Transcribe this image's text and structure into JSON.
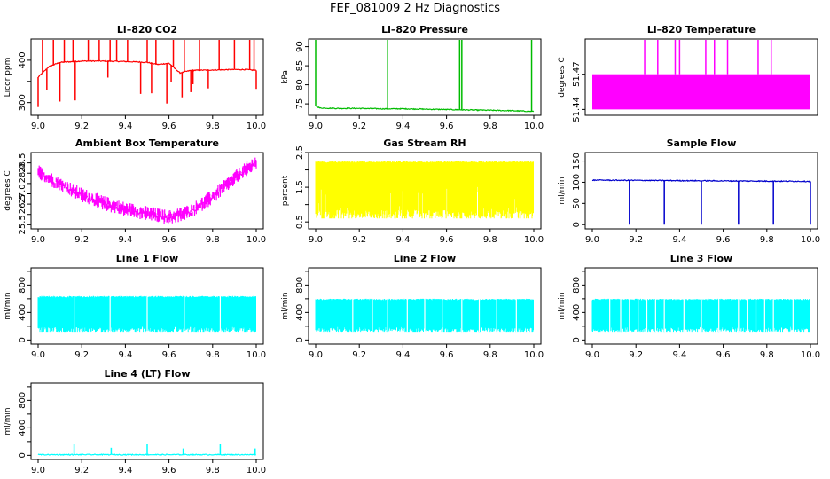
{
  "title": "FEF_081009  2 Hz Diagnostics",
  "chart_data": [
    {
      "type": "line",
      "title": "Li–820 CO2",
      "ylabel": "Licor ppm",
      "color": "#ff0000",
      "xlim": [
        9.0,
        10.0
      ],
      "ylim": [
        270,
        450
      ],
      "yticks": [
        300,
        350,
        400
      ],
      "yticklabels": [
        "300",
        "",
        "400"
      ],
      "xticks": [
        9.0,
        9.2,
        9.4,
        9.6,
        9.8,
        10.0
      ],
      "xticklabels": [
        "9.0",
        "9.2",
        "9.4",
        "9.6",
        "9.8",
        "10.0"
      ],
      "series": [
        {
          "x": [
            9.0,
            9.05,
            9.1,
            9.2,
            9.3,
            9.4,
            9.5,
            9.55,
            9.6,
            9.65,
            9.7,
            9.8,
            9.9,
            9.95,
            10.0
          ],
          "y": [
            360,
            385,
            395,
            398,
            398,
            397,
            395,
            390,
            393,
            370,
            376,
            377,
            378,
            378,
            376
          ]
        }
      ],
      "spikes_up": [
        9.02,
        9.07,
        9.12,
        9.16,
        9.23,
        9.28,
        9.33,
        9.36,
        9.41,
        9.5,
        9.54,
        9.62,
        9.67,
        9.74,
        9.83,
        9.9,
        9.97,
        9.99
      ],
      "spikes_down": [
        9.0,
        9.04,
        9.1,
        9.17,
        9.32,
        9.47,
        9.52,
        9.59,
        9.61,
        9.66,
        9.7,
        9.71,
        9.78,
        10.0
      ]
    },
    {
      "type": "line",
      "title": "Li–820 Pressure",
      "ylabel": "kPa",
      "color": "#00bb00",
      "xlim": [
        9.0,
        10.0
      ],
      "ylim": [
        72,
        92
      ],
      "yticks": [
        75,
        80,
        85,
        90
      ],
      "yticklabels": [
        "75",
        "80",
        "85",
        "90"
      ],
      "xticks": [
        9.0,
        9.2,
        9.4,
        9.6,
        9.8,
        10.0
      ],
      "xticklabels": [
        "9.0",
        "9.2",
        "9.4",
        "9.6",
        "9.8",
        "10.0"
      ],
      "series": [
        {
          "x": [
            9.0,
            9.02,
            9.1,
            9.2,
            9.3,
            9.4,
            9.5,
            9.6,
            9.7,
            9.8,
            9.9,
            10.0
          ],
          "y": [
            74.5,
            73.9,
            73.8,
            73.8,
            73.7,
            73.7,
            73.6,
            73.5,
            73.4,
            73.3,
            73.2,
            73.0
          ]
        }
      ],
      "spikes_up": [
        9.0,
        9.33,
        9.66,
        9.67,
        9.99
      ]
    },
    {
      "type": "line",
      "title": "Li–820 Temperature",
      "ylabel": "degrees C",
      "color": "#ff00ff",
      "xlim": [
        9.0,
        10.0
      ],
      "ylim": [
        51.435,
        51.5
      ],
      "yticks": [
        51.44,
        51.47
      ],
      "yticklabels": [
        "51.44",
        "51.47"
      ],
      "band": [
        51.44,
        51.47
      ],
      "spikes_up": [
        9.24,
        9.3,
        9.38,
        9.4,
        9.52,
        9.56,
        9.62,
        9.76,
        9.82
      ]
    },
    {
      "type": "area",
      "title": "Ambient Box Temperature",
      "ylabel": "degrees C",
      "color": "#ff00ff",
      "xlim": [
        9.0,
        10.0
      ],
      "ylim": [
        25.3,
        29.0
      ],
      "yticks": [
        25.5,
        26.0,
        26.5,
        27.0,
        27.5,
        28.0,
        28.5
      ],
      "yticklabels": [
        "25.5",
        "",
        "26.5",
        "27.0",
        "",
        "28.0",
        "28.5"
      ],
      "xticks": [
        9.0,
        9.2,
        9.4,
        9.6,
        9.8,
        10.0
      ],
      "xticklabels": [
        "9.0",
        "9.2",
        "9.4",
        "9.6",
        "9.8",
        "10.0"
      ],
      "series": [
        {
          "x": [
            9.0,
            9.1,
            9.2,
            9.3,
            9.4,
            9.5,
            9.6,
            9.7,
            9.8,
            9.9,
            10.0
          ],
          "y": [
            28.1,
            27.5,
            27.0,
            26.6,
            26.3,
            26.1,
            25.9,
            26.2,
            26.9,
            27.8,
            28.6
          ]
        }
      ],
      "noise": 0.45
    },
    {
      "type": "area",
      "title": "Gas Stream RH",
      "ylabel": "percent",
      "color": "#ffff00",
      "xlim": [
        9.0,
        10.0
      ],
      "ylim": [
        0.3,
        2.5
      ],
      "yticks": [
        0.5,
        1.0,
        1.5,
        2.0,
        2.5
      ],
      "yticklabels": [
        "0.5",
        "",
        "1.5",
        "",
        "2.5"
      ],
      "xticks": [
        9.0,
        9.2,
        9.4,
        9.6,
        9.8,
        10.0
      ],
      "xticklabels": [
        "9.0",
        "9.2",
        "9.4",
        "9.6",
        "9.8",
        "10.0"
      ],
      "band": [
        0.6,
        2.25
      ]
    },
    {
      "type": "line",
      "title": "Sample Flow",
      "ylabel": "ml/min",
      "color": "#0000cc",
      "xlim": [
        9.0,
        10.0
      ],
      "ylim": [
        -10,
        170
      ],
      "yticks": [
        0,
        50,
        100,
        150
      ],
      "yticklabels": [
        "0",
        "50",
        "100",
        "150"
      ],
      "xticks": [
        9.0,
        9.2,
        9.4,
        9.6,
        9.8,
        10.0
      ],
      "xticklabels": [
        "9.0",
        "9.2",
        "9.4",
        "9.6",
        "9.8",
        "10.0"
      ],
      "series": [
        {
          "x": [
            9.0,
            10.0
          ],
          "y": [
            105,
            102
          ]
        }
      ],
      "spikes_down": [
        9.17,
        9.33,
        9.5,
        9.67,
        9.83,
        10.0
      ]
    },
    {
      "type": "area",
      "title": "Line 1 Flow",
      "ylabel": "ml/min",
      "color": "#00ffff",
      "xlim": [
        9.0,
        10.0
      ],
      "ylim": [
        -60,
        1050
      ],
      "yticks": [
        0,
        200,
        400,
        600,
        800,
        1000
      ],
      "yticklabels": [
        "0",
        "",
        "400",
        "",
        "800",
        ""
      ],
      "xticks": [
        9.0,
        9.2,
        9.4,
        9.6,
        9.8,
        10.0
      ],
      "xticklabels": [
        "9.0",
        "9.2",
        "9.4",
        "9.6",
        "9.8",
        "10.0"
      ],
      "band": [
        120,
        640
      ],
      "gaps": [
        9.165,
        9.33,
        9.5,
        9.67,
        9.835
      ]
    },
    {
      "type": "area",
      "title": "Line 2 Flow",
      "ylabel": "ml/min",
      "color": "#00ffff",
      "xlim": [
        9.0,
        10.0
      ],
      "ylim": [
        -60,
        1050
      ],
      "yticks": [
        0,
        200,
        400,
        600,
        800,
        1000
      ],
      "yticklabels": [
        "0",
        "",
        "400",
        "",
        "800",
        ""
      ],
      "xticks": [
        9.0,
        9.2,
        9.4,
        9.6,
        9.8,
        10.0
      ],
      "xticklabels": [
        "9.0",
        "9.2",
        "9.4",
        "9.6",
        "9.8",
        "10.0"
      ],
      "band": [
        120,
        600
      ],
      "gaps": [
        9.17,
        9.26,
        9.33,
        9.42,
        9.5,
        9.58,
        9.67,
        9.75,
        9.83,
        9.92
      ]
    },
    {
      "type": "area",
      "title": "Line 3 Flow",
      "ylabel": "ml/min",
      "color": "#00ffff",
      "xlim": [
        9.0,
        10.0
      ],
      "ylim": [
        -60,
        1050
      ],
      "yticks": [
        0,
        200,
        400,
        600,
        800,
        1000
      ],
      "yticklabels": [
        "0",
        "",
        "400",
        "",
        "800",
        ""
      ],
      "xticks": [
        9.0,
        9.2,
        9.4,
        9.6,
        9.8,
        10.0
      ],
      "xticklabels": [
        "9.0",
        "9.2",
        "9.4",
        "9.6",
        "9.8",
        "10.0"
      ],
      "band": [
        120,
        600
      ],
      "gaps": [
        9.08,
        9.13,
        9.17,
        9.21,
        9.25,
        9.29,
        9.33,
        9.42,
        9.5,
        9.58,
        9.67,
        9.71,
        9.75,
        9.79,
        9.83,
        9.92
      ]
    },
    {
      "type": "line",
      "title": "Line 4 (LT) Flow",
      "ylabel": "ml/min",
      "color": "#00ffff",
      "xlim": [
        9.0,
        10.0
      ],
      "ylim": [
        -60,
        1050
      ],
      "yticks": [
        0,
        200,
        400,
        600,
        800,
        1000
      ],
      "yticklabels": [
        "0",
        "",
        "400",
        "",
        "800",
        ""
      ],
      "xticks": [
        9.0,
        9.2,
        9.4,
        9.6,
        9.8,
        10.0
      ],
      "xticklabels": [
        "9.0",
        "9.2",
        "9.4",
        "9.6",
        "9.8",
        "10.0"
      ],
      "series": [
        {
          "x": [
            9.0,
            10.0
          ],
          "y": [
            10,
            10
          ]
        }
      ],
      "spikes_up": [
        9.165,
        9.335,
        9.5,
        9.665,
        9.835,
        9.995
      ],
      "spike_heights": [
        170,
        110,
        170,
        100,
        170,
        100
      ]
    }
  ]
}
